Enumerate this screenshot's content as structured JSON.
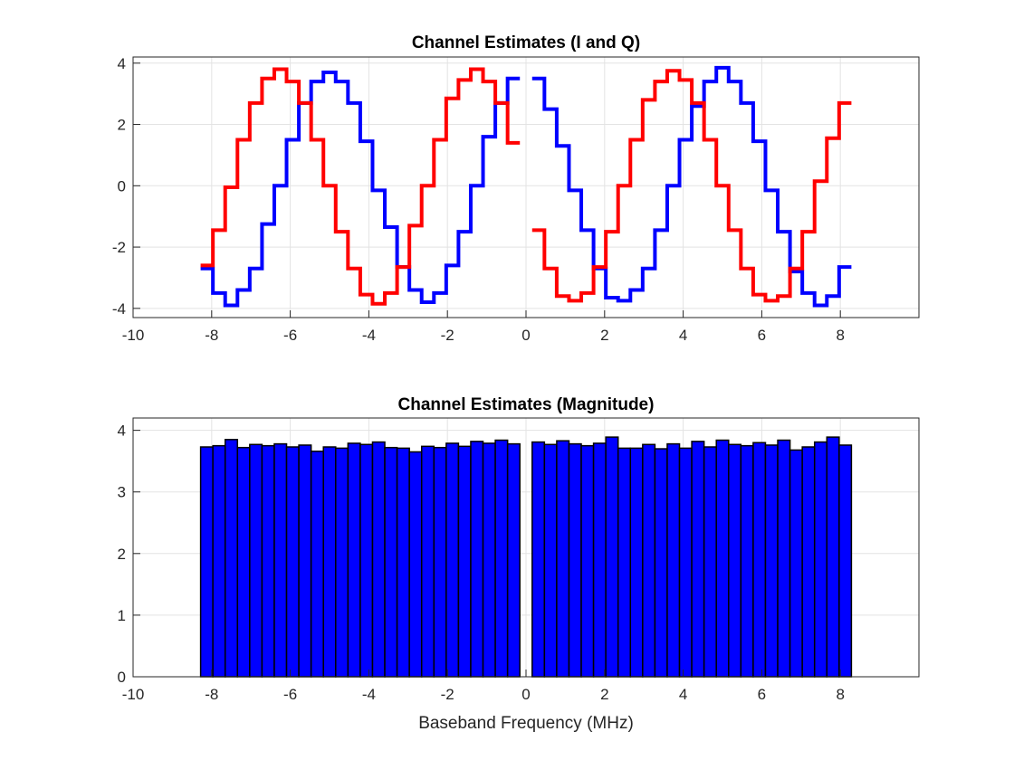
{
  "chart_data": [
    {
      "type": "line",
      "title": "Channel Estimates (I and Q)",
      "xlabel": "",
      "ylabel": "",
      "xlim": [
        -10,
        10
      ],
      "ylim": [
        -4.3,
        4.2
      ],
      "grid": true,
      "xticks": [
        "-10",
        "-8",
        "-6",
        "-4",
        "-2",
        "0",
        "2",
        "4",
        "6",
        "8"
      ],
      "yticks": [
        "-4",
        "-2",
        "0",
        "2",
        "4"
      ],
      "x": [
        -8.125,
        -7.8125,
        -7.5,
        -7.1875,
        -6.875,
        -6.5625,
        -6.25,
        -5.9375,
        -5.625,
        -5.3125,
        -5.0,
        -4.6875,
        -4.375,
        -4.0625,
        -3.75,
        -3.4375,
        -3.125,
        -2.8125,
        -2.5,
        -2.1875,
        -1.875,
        -1.5625,
        -1.25,
        -0.9375,
        -0.625,
        -0.3125,
        0.3125,
        0.625,
        0.9375,
        1.25,
        1.5625,
        1.875,
        2.1875,
        2.5,
        2.8125,
        3.125,
        3.4375,
        3.75,
        4.0625,
        4.375,
        4.6875,
        5.0,
        5.3125,
        5.625,
        5.9375,
        6.25,
        6.5625,
        6.875,
        7.1875,
        7.5,
        7.8125,
        8.125
      ],
      "series": [
        {
          "color": "#0000ff",
          "values": [
            -2.7,
            -3.5,
            -3.9,
            -3.4,
            -2.7,
            -1.25,
            0.0,
            1.5,
            2.7,
            3.4,
            3.7,
            3.4,
            2.7,
            1.45,
            -0.15,
            -1.35,
            -2.65,
            -3.4,
            -3.8,
            -3.5,
            -2.6,
            -1.5,
            0.0,
            1.6,
            2.7,
            3.5,
            3.5,
            2.5,
            1.3,
            -0.15,
            -1.45,
            -2.7,
            -3.65,
            -3.75,
            -3.4,
            -2.7,
            -1.45,
            0.0,
            1.5,
            2.6,
            3.4,
            3.85,
            3.4,
            2.7,
            1.45,
            -0.15,
            -1.5,
            -2.8,
            -3.5,
            -3.9,
            -3.6,
            -2.65
          ]
        },
        {
          "color": "#ff0000",
          "values": [
            -2.6,
            -1.45,
            -0.05,
            1.5,
            2.7,
            3.5,
            3.8,
            3.4,
            2.7,
            1.5,
            0.0,
            -1.5,
            -2.7,
            -3.55,
            -3.85,
            -3.5,
            -2.65,
            -1.3,
            0.0,
            1.5,
            2.85,
            3.45,
            3.8,
            3.4,
            2.7,
            1.4,
            -1.45,
            -2.7,
            -3.6,
            -3.75,
            -3.5,
            -2.65,
            -1.5,
            0.0,
            1.5,
            2.8,
            3.4,
            3.75,
            3.45,
            2.7,
            1.5,
            0.0,
            -1.45,
            -2.7,
            -3.55,
            -3.75,
            -3.6,
            -2.7,
            -1.5,
            0.15,
            1.55,
            2.7
          ]
        }
      ]
    },
    {
      "type": "bar",
      "title": "Channel Estimates (Magnitude)",
      "xlabel": "Baseband Frequency (MHz)",
      "ylabel": "",
      "xlim": [
        -10,
        10
      ],
      "ylim": [
        0,
        4.2
      ],
      "grid": true,
      "xticks": [
        "-10",
        "-8",
        "-6",
        "-4",
        "-2",
        "0",
        "2",
        "4",
        "6",
        "8"
      ],
      "yticks": [
        "0",
        "1",
        "2",
        "3",
        "4"
      ],
      "bar_color": "#0000ff",
      "x": [
        -8.125,
        -7.8125,
        -7.5,
        -7.1875,
        -6.875,
        -6.5625,
        -6.25,
        -5.9375,
        -5.625,
        -5.3125,
        -5.0,
        -4.6875,
        -4.375,
        -4.0625,
        -3.75,
        -3.4375,
        -3.125,
        -2.8125,
        -2.5,
        -2.1875,
        -1.875,
        -1.5625,
        -1.25,
        -0.9375,
        -0.625,
        -0.3125,
        0.3125,
        0.625,
        0.9375,
        1.25,
        1.5625,
        1.875,
        2.1875,
        2.5,
        2.8125,
        3.125,
        3.4375,
        3.75,
        4.0625,
        4.375,
        4.6875,
        5.0,
        5.3125,
        5.625,
        5.9375,
        6.25,
        6.5625,
        6.875,
        7.1875,
        7.5,
        7.8125,
        8.125
      ],
      "values": [
        3.73,
        3.75,
        3.85,
        3.72,
        3.77,
        3.75,
        3.78,
        3.73,
        3.76,
        3.66,
        3.73,
        3.71,
        3.79,
        3.77,
        3.81,
        3.72,
        3.71,
        3.65,
        3.74,
        3.72,
        3.79,
        3.74,
        3.82,
        3.79,
        3.84,
        3.78,
        3.81,
        3.77,
        3.83,
        3.78,
        3.75,
        3.79,
        3.89,
        3.71,
        3.71,
        3.77,
        3.7,
        3.78,
        3.71,
        3.82,
        3.73,
        3.84,
        3.77,
        3.75,
        3.8,
        3.76,
        3.84,
        3.68,
        3.73,
        3.81,
        3.89,
        3.76
      ]
    }
  ]
}
